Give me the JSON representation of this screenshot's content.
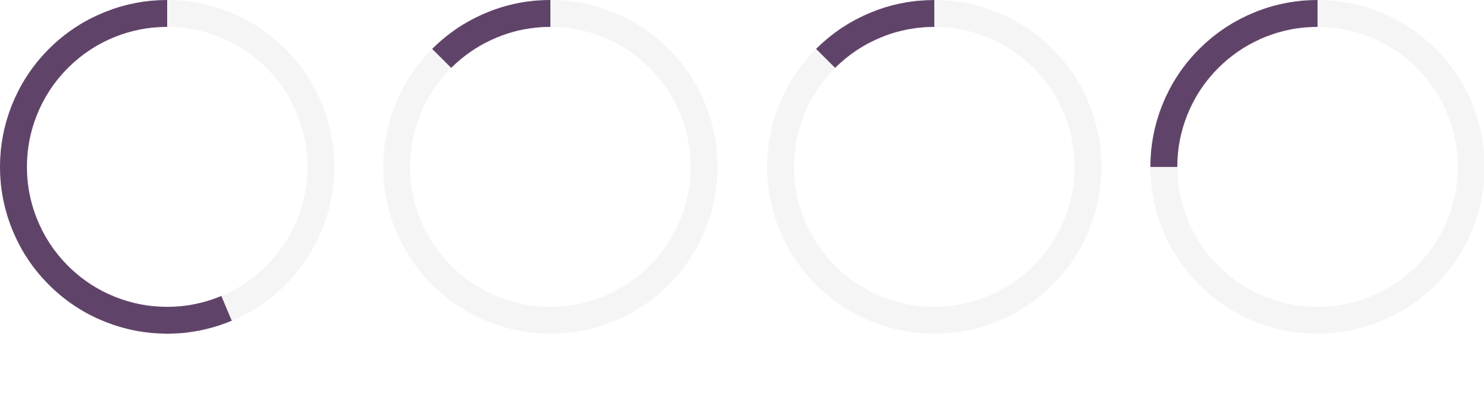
{
  "colors": {
    "progress": "#604369",
    "track": "#f5f5f5",
    "background": "#ffffff"
  },
  "chart_data": [
    {
      "type": "gauge",
      "value": 0.563,
      "max": 1
    },
    {
      "type": "gauge",
      "value": 0.125,
      "max": 1
    },
    {
      "type": "gauge",
      "value": 0.125,
      "max": 1
    },
    {
      "type": "gauge",
      "value": 0.25,
      "max": 1
    }
  ]
}
